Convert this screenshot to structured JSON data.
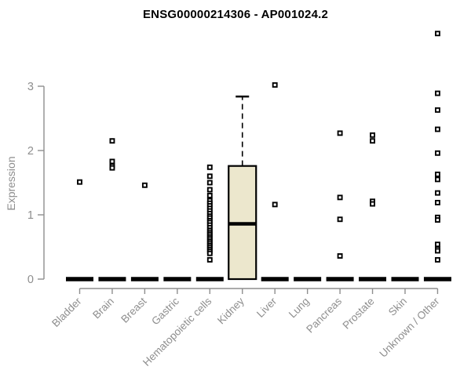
{
  "chart_data": {
    "type": "boxplot",
    "title": "ENSG00000214306 - AP001024.2",
    "ylabel": "Expression",
    "xlabel": "",
    "ylim": [
      0,
      3
    ],
    "yticks": [
      0,
      1,
      2,
      3
    ],
    "legend": "none",
    "grid": false,
    "point_style": "open-square",
    "categories": [
      "Bladder",
      "Brain",
      "Breast",
      "Gastric",
      "Hematopoietic cells",
      "Kidney",
      "Liver",
      "Lung",
      "Pancreas",
      "Prostate",
      "Skin",
      "Unknown / Other"
    ],
    "groups": [
      {
        "category": "Bladder",
        "zero_bar": true,
        "points": [
          1.51
        ]
      },
      {
        "category": "Brain",
        "zero_bar": true,
        "points": [
          2.15,
          1.83,
          1.76,
          1.73
        ]
      },
      {
        "category": "Breast",
        "zero_bar": true,
        "points": [
          1.46
        ]
      },
      {
        "category": "Gastric",
        "zero_bar": true,
        "points": []
      },
      {
        "category": "Hematopoietic cells",
        "zero_bar": true,
        "points": [
          1.74,
          1.6,
          1.5,
          1.39,
          1.3,
          1.22,
          1.18,
          1.14,
          1.1,
          1.06,
          1.02,
          0.98,
          0.95,
          0.91,
          0.88,
          0.84,
          0.8,
          0.76,
          0.73,
          0.7,
          0.67,
          0.64,
          0.61,
          0.58,
          0.55,
          0.52,
          0.49,
          0.46,
          0.43,
          0.4,
          0.3
        ]
      },
      {
        "category": "Kidney",
        "zero_bar": false,
        "box": {
          "q1": 0,
          "median": 0.86,
          "q3": 1.76,
          "whisker_low": 0,
          "whisker_high": 2.84
        },
        "points": []
      },
      {
        "category": "Liver",
        "zero_bar": true,
        "points": [
          3.02,
          1.16
        ]
      },
      {
        "category": "Lung",
        "zero_bar": true,
        "points": []
      },
      {
        "category": "Pancreas",
        "zero_bar": true,
        "points": [
          2.27,
          1.27,
          0.93,
          0.36
        ]
      },
      {
        "category": "Prostate",
        "zero_bar": true,
        "points": [
          2.24,
          2.15,
          1.21,
          1.17
        ]
      },
      {
        "category": "Skin",
        "zero_bar": true,
        "points": []
      },
      {
        "category": "Unknown / Other",
        "zero_bar": true,
        "points": [
          3.82,
          2.89,
          2.63,
          2.33,
          1.96,
          1.63,
          1.55,
          1.34,
          1.19,
          0.96,
          0.92,
          0.54,
          0.47,
          0.44,
          0.3
        ]
      }
    ],
    "colors": {
      "box_fill": "#ece7cd",
      "box_border": "#000000",
      "median": "#000000",
      "zero_bar": "#000000",
      "point": "#000000",
      "axis": "#8e8e8e",
      "tick_text": "#8e8e8e",
      "title_text": "#000000"
    }
  }
}
